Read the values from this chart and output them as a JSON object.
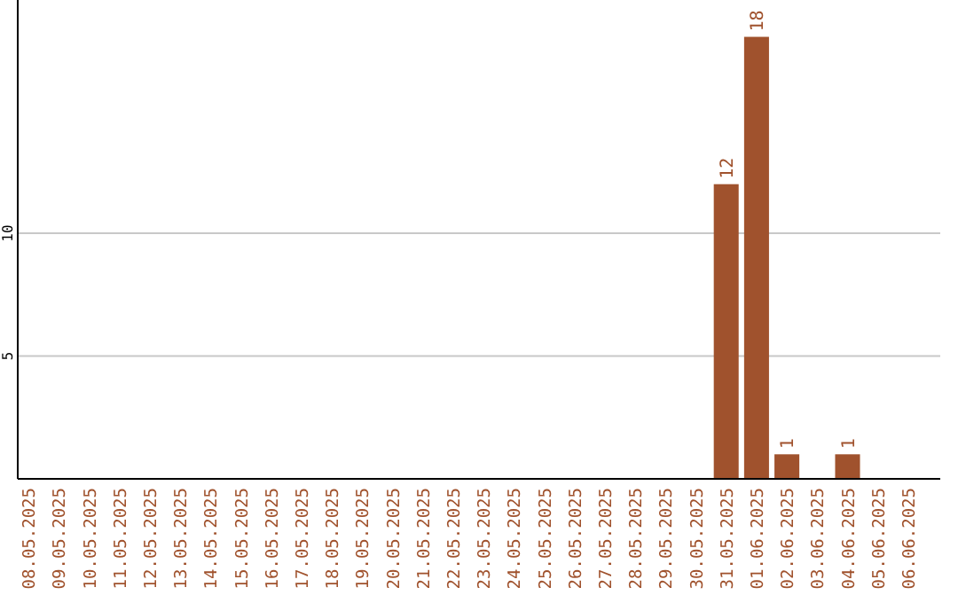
{
  "chart_data": {
    "type": "bar",
    "categories": [
      "08.05.2025",
      "09.05.2025",
      "10.05.2025",
      "11.05.2025",
      "12.05.2025",
      "13.05.2025",
      "14.05.2025",
      "15.05.2025",
      "16.05.2025",
      "17.05.2025",
      "18.05.2025",
      "19.05.2025",
      "20.05.2025",
      "21.05.2025",
      "22.05.2025",
      "23.05.2025",
      "24.05.2025",
      "25.05.2025",
      "26.05.2025",
      "27.05.2025",
      "28.05.2025",
      "29.05.2025",
      "30.05.2025",
      "31.05.2025",
      "01.06.2025",
      "02.06.2025",
      "03.06.2025",
      "04.06.2025",
      "05.06.2025",
      "06.06.2025"
    ],
    "values": [
      0,
      0,
      0,
      0,
      0,
      0,
      0,
      0,
      0,
      0,
      0,
      0,
      0,
      0,
      0,
      0,
      0,
      0,
      0,
      0,
      0,
      0,
      0,
      12,
      18,
      1,
      0,
      1,
      0,
      0
    ],
    "value_labels": [
      null,
      null,
      null,
      null,
      null,
      null,
      null,
      null,
      null,
      null,
      null,
      null,
      null,
      null,
      null,
      null,
      null,
      null,
      null,
      null,
      null,
      null,
      null,
      "12",
      "18",
      "1",
      null,
      "1",
      null,
      null
    ],
    "color": "#a0522d",
    "ylim": [
      0,
      19.5
    ],
    "yticks": [
      5,
      10
    ],
    "grid": "y"
  }
}
